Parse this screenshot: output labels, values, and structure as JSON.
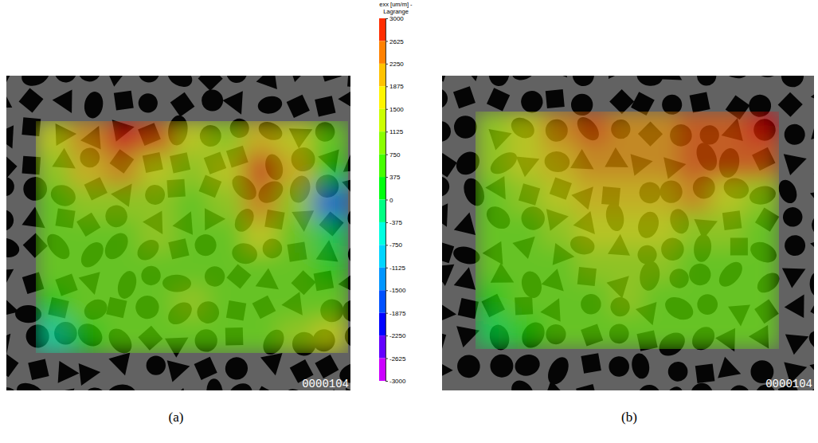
{
  "chart_data": [
    {
      "type": "heatmap",
      "label": "(a)",
      "frame_label": "0000104",
      "tick_labels": false,
      "cells": [
        [
          1500,
          2250,
          3000,
          2625,
          1500,
          1125,
          1875,
          1500,
          750
        ],
        [
          1125,
          1875,
          2250,
          1500,
          1125,
          1500,
          2625,
          1875,
          375
        ],
        [
          750,
          1125,
          1125,
          1125,
          750,
          1125,
          2250,
          1125,
          -1500
        ],
        [
          750,
          750,
          750,
          1125,
          750,
          750,
          1500,
          750,
          0
        ],
        [
          750,
          750,
          750,
          750,
          750,
          750,
          750,
          750,
          375
        ],
        [
          375,
          750,
          750,
          750,
          1125,
          750,
          750,
          750,
          750
        ],
        [
          -375,
          375,
          750,
          750,
          750,
          750,
          750,
          1125,
          1500
        ]
      ]
    },
    {
      "type": "heatmap",
      "label": "(b)",
      "frame_label": "0000104",
      "tick_labels": false,
      "cells": [
        [
          1125,
          1500,
          2250,
          2625,
          2250,
          2250,
          2625,
          2625,
          3000
        ],
        [
          1125,
          1500,
          1875,
          2250,
          2250,
          2250,
          2625,
          2625,
          2625
        ],
        [
          750,
          1125,
          1500,
          1875,
          1875,
          1875,
          2250,
          1500,
          1125
        ],
        [
          750,
          750,
          1125,
          1500,
          1500,
          1500,
          1125,
          1125,
          750
        ],
        [
          750,
          750,
          750,
          1125,
          1125,
          1125,
          750,
          750,
          750
        ],
        [
          375,
          750,
          750,
          750,
          1125,
          750,
          750,
          750,
          750
        ],
        [
          0,
          375,
          750,
          750,
          750,
          750,
          750,
          750,
          750
        ]
      ]
    }
  ],
  "colorbar": {
    "title": [
      "exx [um/m] -",
      "Lagrange"
    ],
    "range": [
      -3000,
      3000
    ],
    "ticks": [
      3000,
      2625,
      2250,
      1875,
      1500,
      1125,
      750,
      375,
      0,
      -375,
      -750,
      -1125,
      -1500,
      -1875,
      -2250,
      -2625,
      -3000
    ]
  }
}
